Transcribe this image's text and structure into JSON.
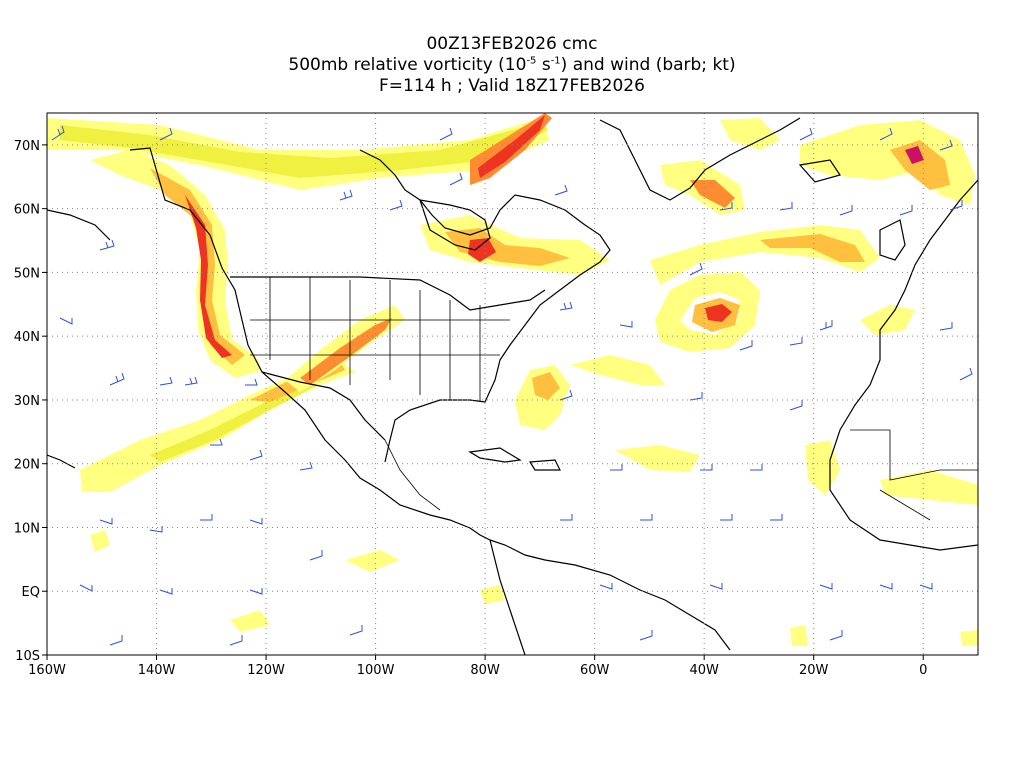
{
  "title": {
    "line1": "00Z13FEB2026 cmc",
    "line2_pre": "500mb relative vorticity (10",
    "line2_exp1": "-5",
    "line2_mid": " s",
    "line2_exp2": "-1",
    "line2_post": ") and wind (barb; kt)",
    "line3": "F=114 h ; Valid 18Z17FEB2026"
  },
  "map": {
    "lon_range": [
      -160,
      10
    ],
    "lat_range": [
      -10,
      75
    ],
    "lat_ticks": [
      {
        "value": 70,
        "label": "70N"
      },
      {
        "value": 60,
        "label": "60N"
      },
      {
        "value": 50,
        "label": "50N"
      },
      {
        "value": 40,
        "label": "40N"
      },
      {
        "value": 30,
        "label": "30N"
      },
      {
        "value": 20,
        "label": "20N"
      },
      {
        "value": 10,
        "label": "10N"
      },
      {
        "value": 0,
        "label": "EQ"
      },
      {
        "value": -10,
        "label": "10S"
      }
    ],
    "lon_ticks": [
      {
        "value": -160,
        "label": "160W"
      },
      {
        "value": -140,
        "label": "140W"
      },
      {
        "value": -120,
        "label": "120W"
      },
      {
        "value": -100,
        "label": "100W"
      },
      {
        "value": -80,
        "label": "80W"
      },
      {
        "value": -60,
        "label": "60W"
      },
      {
        "value": -40,
        "label": "40W"
      },
      {
        "value": -20,
        "label": "20W"
      },
      {
        "value": 0,
        "label": "0"
      }
    ],
    "gridlines": "dotted",
    "colors": {
      "shade_low": "#ffff80",
      "shade_mid1": "#f0f040",
      "shade_mid2": "#ffc040",
      "shade_mid3": "#ff8c30",
      "shade_high": "#ee3322",
      "shade_peak": "#cc1066",
      "wind_barb": "#2a50e0",
      "coastline": "#000000",
      "grid": "#888888"
    }
  }
}
